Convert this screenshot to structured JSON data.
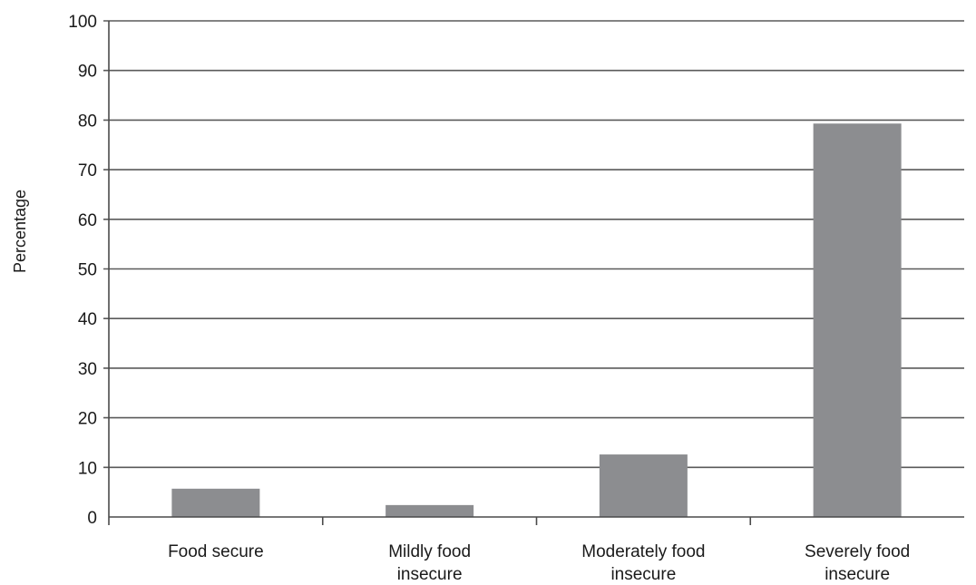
{
  "chart_data": {
    "type": "bar",
    "title": "",
    "xlabel": "",
    "ylabel": "Percentage",
    "ylim": [
      0,
      100
    ],
    "yticks": [
      0,
      10,
      20,
      30,
      40,
      50,
      60,
      70,
      80,
      90,
      100
    ],
    "grid": true,
    "categories": [
      [
        "Food secure"
      ],
      [
        "Mildly food",
        "insecure"
      ],
      [
        "Moderately food",
        "insecure"
      ],
      [
        "Severely food",
        "insecure"
      ]
    ],
    "values": [
      5.7,
      2.4,
      12.6,
      79.3
    ],
    "colors": {
      "bar": "#8c8d90",
      "grid": "#5a5a5a",
      "axis": "#4a4a4a"
    }
  }
}
